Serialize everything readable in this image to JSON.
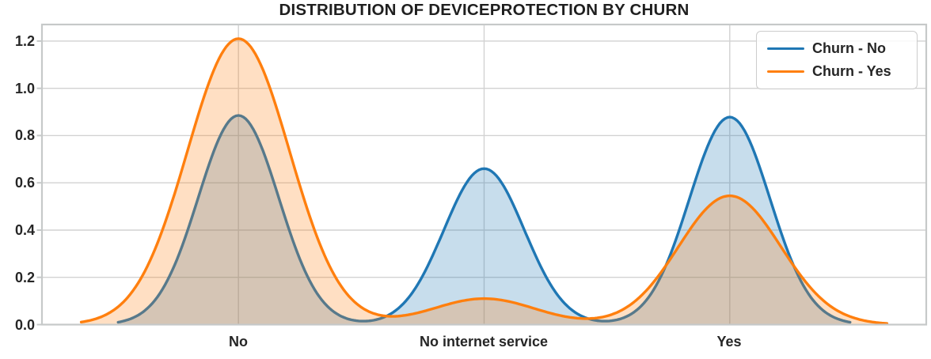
{
  "chart_data": {
    "type": "area",
    "variant": "kde-density",
    "title": "DISTRIBUTION OF DEVICEPROTECTION BY CHURN",
    "xlabel": "",
    "ylabel": "",
    "categories": [
      "No",
      "No internet service",
      "Yes"
    ],
    "category_positions": [
      0,
      1,
      2
    ],
    "y_tick_labels": [
      "0.0",
      "0.2",
      "0.4",
      "0.6",
      "0.8",
      "1.0",
      "1.2"
    ],
    "xlim": [
      -0.8,
      2.8
    ],
    "ylim": [
      0,
      1.27
    ],
    "grid": true,
    "grid_color": "#d2d2d2",
    "spine_color": "#c6c9c9",
    "legend_position": "upper right",
    "series": [
      {
        "name": "Churn - No",
        "color": "#1f77b4",
        "fill_opacity": 0.25,
        "peak_densities": [
          0.885,
          0.66,
          0.878
        ],
        "bandwidth_sigma": 0.164,
        "x_range": [
          -0.49,
          2.49
        ]
      },
      {
        "name": "Churn - Yes",
        "color": "#ff7f0e",
        "fill_opacity": 0.25,
        "peak_densities": [
          1.21,
          0.11,
          0.545
        ],
        "bandwidth_sigma": 0.208,
        "x_range": [
          -0.64,
          2.64
        ]
      }
    ]
  }
}
